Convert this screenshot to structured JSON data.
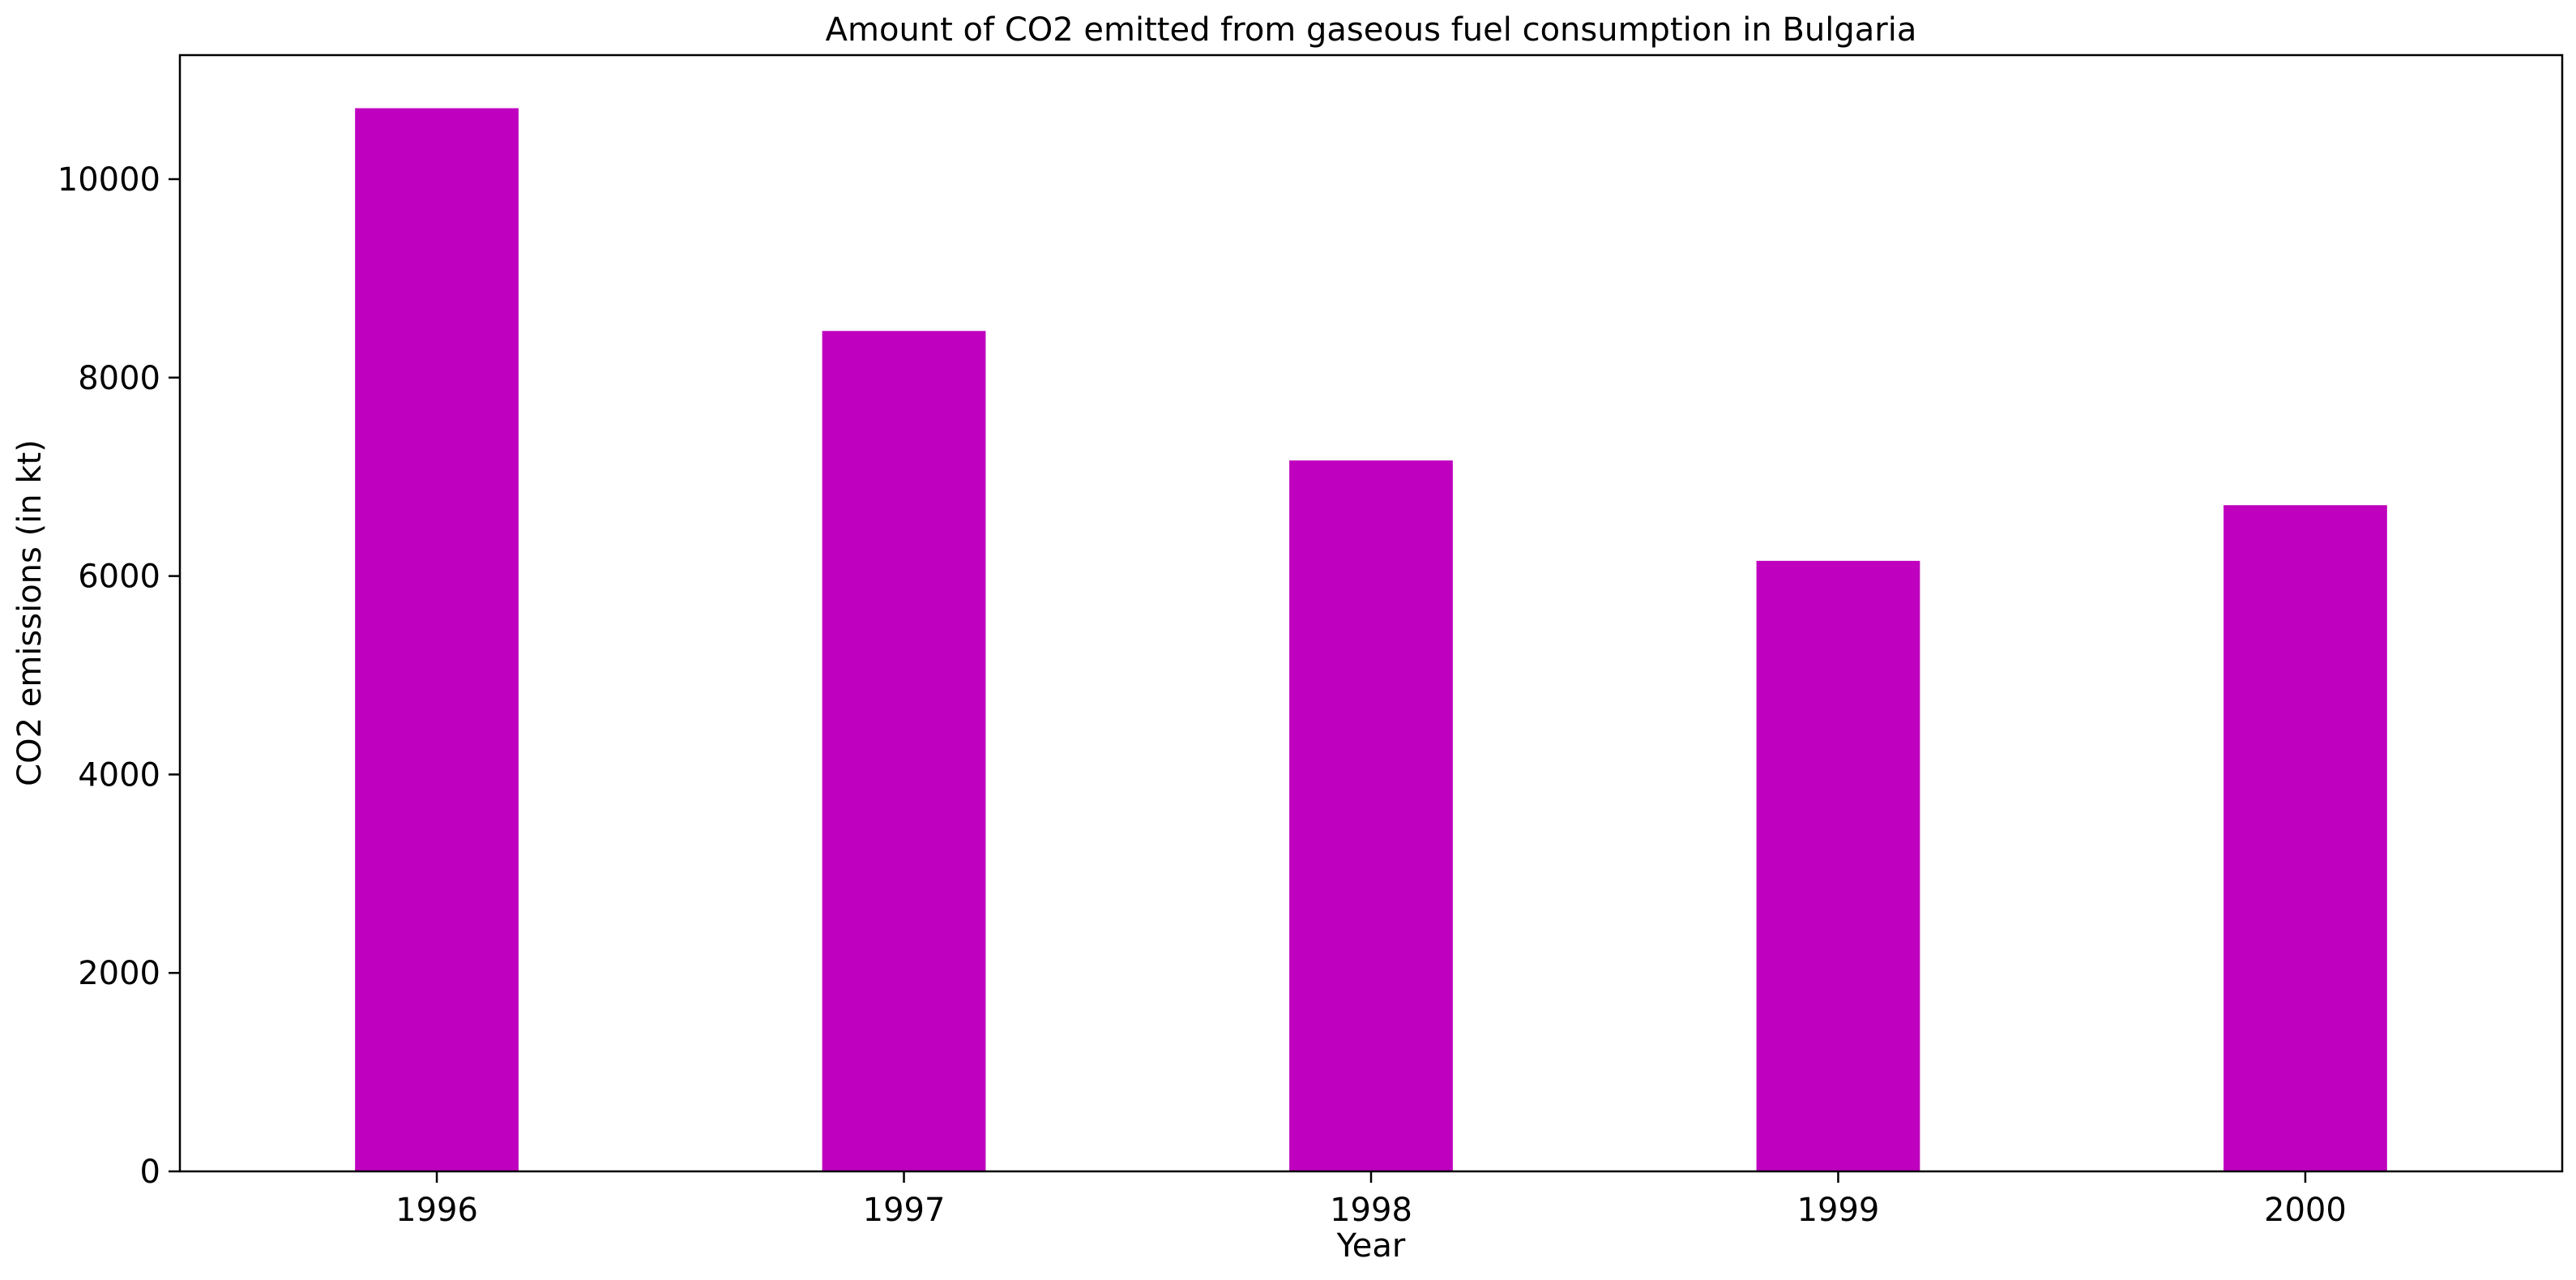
{
  "chart_data": {
    "type": "bar",
    "title": "Amount of CO2 emitted from gaseous fuel consumption in Bulgaria",
    "xlabel": "Year",
    "ylabel": "CO2 emissions (in kt)",
    "categories": [
      "1996",
      "1997",
      "1998",
      "1999",
      "2000"
    ],
    "values": [
      10715,
      8470,
      7165,
      6153,
      6714
    ],
    "ylim": [
      0,
      11250
    ],
    "yticks": [
      0,
      2000,
      4000,
      6000,
      8000,
      10000
    ],
    "grid": false,
    "legend": "none",
    "bar_color": "#bf00bf"
  }
}
